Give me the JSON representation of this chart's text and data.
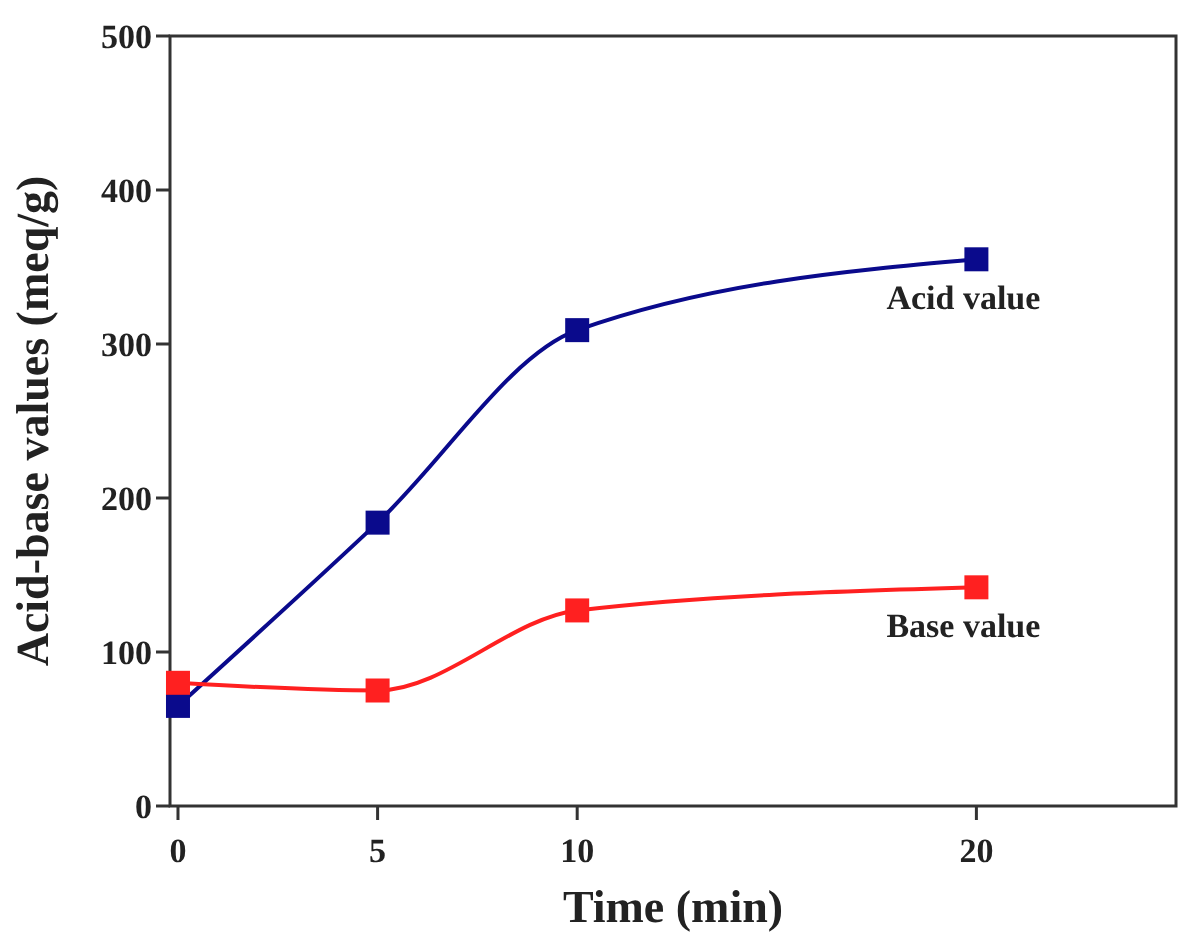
{
  "chart_data": {
    "type": "line",
    "xlabel": "Time (min)",
    "ylabel": "Acid-base values (meq/g)",
    "x": [
      0,
      5,
      10,
      20
    ],
    "series": [
      {
        "name": "Acid value",
        "color": "#0a0a8c",
        "values": [
          65,
          184,
          309,
          355
        ]
      },
      {
        "name": "Base value",
        "color": "#ff2020",
        "values": [
          80,
          75,
          127,
          142
        ]
      }
    ],
    "xlim": [
      -0.2,
      25
    ],
    "xticks": [
      0,
      5,
      10,
      20
    ],
    "ylim": [
      0,
      500
    ],
    "yticks": [
      0,
      100,
      200,
      300,
      400,
      500
    ],
    "grid": false,
    "marker": "square",
    "line_style": "solid"
  }
}
